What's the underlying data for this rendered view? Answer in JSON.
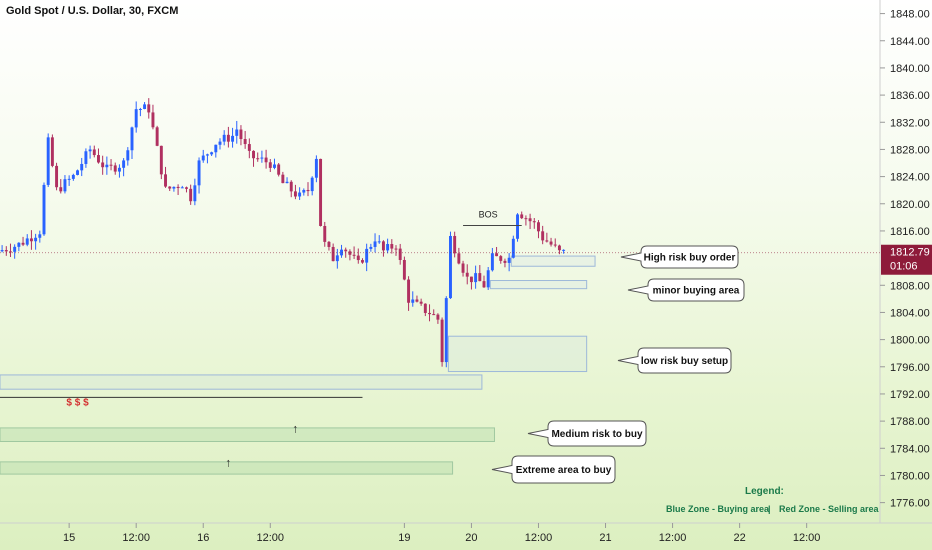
{
  "chart_data": {
    "type": "candlestick",
    "title": "Gold Spot / U.S. Dollar, 30, FXCM",
    "ylim": [
      1773,
      1850
    ],
    "y_ticks": [
      "1848.00",
      "1844.00",
      "1840.00",
      "1836.00",
      "1832.00",
      "1828.00",
      "1824.00",
      "1820.00",
      "1816.00",
      "1812.79",
      "1808.00",
      "1804.00",
      "1800.00",
      "1796.00",
      "1792.00",
      "1788.00",
      "1784.00",
      "1780.00",
      "1776.00"
    ],
    "y_tick_values": [
      1848,
      1844,
      1840,
      1836,
      1832,
      1828,
      1824,
      1820,
      1816,
      1812.79,
      1808,
      1804,
      1800,
      1796,
      1792,
      1788,
      1784,
      1780,
      1776
    ],
    "x_ticks": [
      "15",
      "12:00",
      "16",
      "12:00",
      "19",
      "20",
      "12:00",
      "21",
      "12:00",
      "22",
      "12:00"
    ],
    "x_tick_bar_index": [
      16,
      32,
      48,
      64,
      96,
      112,
      128,
      144,
      160,
      176,
      192
    ],
    "bar_count": 210,
    "bars_visible": 135,
    "current_price": "1812.79",
    "countdown": "01:06",
    "price_path": [
      [
        0,
        1813
      ],
      [
        5,
        1814
      ],
      [
        10,
        1816
      ],
      [
        12,
        1829
      ],
      [
        14,
        1822
      ],
      [
        18,
        1824
      ],
      [
        22,
        1828
      ],
      [
        26,
        1825
      ],
      [
        30,
        1826
      ],
      [
        33,
        1834
      ],
      [
        36,
        1834
      ],
      [
        40,
        1822
      ],
      [
        44,
        1823
      ],
      [
        46,
        1821
      ],
      [
        48,
        1826
      ],
      [
        52,
        1829
      ],
      [
        56,
        1830
      ],
      [
        57,
        1831
      ],
      [
        60,
        1827
      ],
      [
        65,
        1826
      ],
      [
        68,
        1823
      ],
      [
        72,
        1821
      ],
      [
        74,
        1822
      ],
      [
        76,
        1827
      ],
      [
        77,
        1817
      ],
      [
        78,
        1814
      ],
      [
        80,
        1812
      ],
      [
        82,
        1814
      ],
      [
        86,
        1811
      ],
      [
        90,
        1815
      ],
      [
        92,
        1813
      ],
      [
        95,
        1814
      ],
      [
        98,
        1806
      ],
      [
        100,
        1805
      ],
      [
        103,
        1804
      ],
      [
        105,
        1803
      ],
      [
        106,
        1797
      ],
      [
        107,
        1806
      ],
      [
        108,
        1815
      ],
      [
        110,
        1812
      ],
      [
        112,
        1809
      ],
      [
        114,
        1809
      ],
      [
        116,
        1808
      ],
      [
        118,
        1812
      ],
      [
        120,
        1812
      ],
      [
        122,
        1812
      ],
      [
        124,
        1819
      ],
      [
        126,
        1818
      ],
      [
        128,
        1817
      ],
      [
        130,
        1815
      ],
      [
        132,
        1814
      ],
      [
        134,
        1812.8
      ]
    ],
    "zones": [
      {
        "price_top": 1812.3,
        "price_bottom": 1810.8,
        "bar_start": 122,
        "bar_end": 142,
        "color": "blue",
        "label": "High risk buy order"
      },
      {
        "price_top": 1808.7,
        "price_bottom": 1807.5,
        "bar_start": 117,
        "bar_end": 140,
        "color": "blue",
        "label": "minor buying area"
      },
      {
        "price_top": 1800.5,
        "price_bottom": 1795.3,
        "bar_start": 107,
        "bar_end": 140,
        "color": "blue",
        "label": "low risk buy setup"
      },
      {
        "price_top": 1794.8,
        "price_bottom": 1792.7,
        "bar_start": 0,
        "bar_end": 115,
        "color": "blue",
        "label": ""
      },
      {
        "price_top": 1787.0,
        "price_bottom": 1785.0,
        "bar_start": 0,
        "bar_end": 118,
        "color": "green",
        "label": "Medium risk to buy"
      },
      {
        "price_top": 1782.0,
        "price_bottom": 1780.2,
        "bar_start": 0,
        "bar_end": 108,
        "color": "green",
        "label": "Extreme area to buy"
      }
    ],
    "annotations": [
      {
        "text": "BOS",
        "bar": 116,
        "price": 1818.0
      },
      {
        "text": "$ $ $",
        "bar": 18,
        "price": 1790.3
      },
      {
        "text": "↑",
        "bar": 70,
        "price": 1786.3
      },
      {
        "text": "↑",
        "bar": 54,
        "price": 1781.3
      }
    ],
    "legend": {
      "title": "Legend:",
      "blue": "Blue Zone - Buying area",
      "separator": "|",
      "red": "Red Zone - Selling area"
    },
    "grid": false
  },
  "colors": {
    "up": "#2962ff",
    "down": "#b03060",
    "price_tag": "#8e1b3a",
    "zone_blue_fill": "rgba(160,190,235,0.10)",
    "zone_blue_stroke": "#9db8d9",
    "zone_green_fill": "rgba(150,205,150,0.25)",
    "zone_green_stroke": "#a0c8a0",
    "legend_text": "#1b7a4a",
    "dollar": "#d32f2f"
  }
}
